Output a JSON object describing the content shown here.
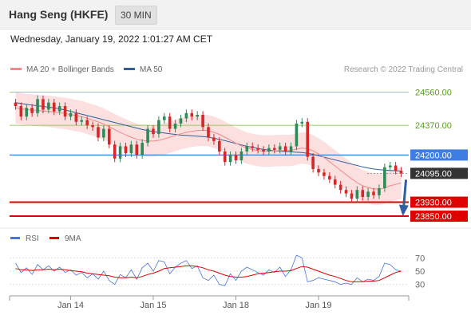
{
  "header": {
    "instrument": "Hang Seng (HKFE)",
    "timeframe": "30 MIN"
  },
  "datetime": "Wednesday, January 19, 2022 1:01:27 AM CET",
  "legend": {
    "items": [
      {
        "label": "MA 20 + Bollinger Bands",
        "color": "#f08a8a"
      },
      {
        "label": "MA 50",
        "color": "#2f5f9e"
      }
    ],
    "credit": "Research © 2022 Trading Central"
  },
  "colors": {
    "up": "#2e8b57",
    "down": "#d62728",
    "support": "#e00000",
    "resistance": "#7cbf3a",
    "pivot": "#3d7ee0",
    "band": "#fbd9d9",
    "arrow": "#2f5f9e"
  },
  "chart_data": {
    "type": "candlestick",
    "ylim": [
      23800,
      24640
    ],
    "levels": [
      {
        "value": 24560.0,
        "label": "24560.00",
        "kind": "resistance"
      },
      {
        "value": 24370.0,
        "label": "24370.00",
        "kind": "resistance"
      },
      {
        "value": 24200.0,
        "label": "24200.00",
        "kind": "pivot"
      },
      {
        "value": 24095.0,
        "label": "24095.00",
        "kind": "last"
      },
      {
        "value": 23930.0,
        "label": "23930.00",
        "kind": "support"
      },
      {
        "value": 23850.0,
        "label": "23850.00",
        "kind": "support"
      }
    ],
    "x_ticks": [
      {
        "label": "Jan 14",
        "index": 10
      },
      {
        "label": "Jan 15",
        "index": 25
      },
      {
        "label": "Jan 18",
        "index": 40
      },
      {
        "label": "Jan 19",
        "index": 55
      }
    ],
    "close": [
      24480,
      24420,
      24470,
      24440,
      24520,
      24460,
      24500,
      24450,
      24480,
      24420,
      24440,
      24390,
      24400,
      24370,
      24360,
      24300,
      24350,
      24260,
      24180,
      24250,
      24210,
      24260,
      24200,
      24270,
      24350,
      24320,
      24400,
      24420,
      24350,
      24380,
      24410,
      24440,
      24420,
      24430,
      24360,
      24300,
      24280,
      24220,
      24160,
      24200,
      24170,
      24220,
      24250,
      24240,
      24230,
      24220,
      24240,
      24230,
      24250,
      24220,
      24250,
      24380,
      24390,
      24190,
      24120,
      24100,
      24080,
      24060,
      24030,
      24000,
      23980,
      23950,
      24000,
      23960,
      23990,
      23970,
      24010,
      24130,
      24140,
      24110,
      24095
    ],
    "volatility": 60,
    "ma20": [
      24470,
      24465,
      24460,
      24458,
      24455,
      24452,
      24450,
      24446,
      24442,
      24438,
      24432,
      24426,
      24420,
      24410,
      24400,
      24390,
      24378,
      24362,
      24345,
      24330,
      24315,
      24302,
      24290,
      24284,
      24280,
      24280,
      24284,
      24292,
      24302,
      24312,
      24322,
      24330,
      24336,
      24340,
      24342,
      24340,
      24330,
      24318,
      24302,
      24285,
      24268,
      24252,
      24240,
      24232,
      24226,
      24222,
      24222,
      24224,
      24226,
      24226,
      24226,
      24234,
      24240,
      24236,
      24224,
      24206,
      24186,
      24162,
      24138,
      24112,
      24088,
      24064,
      24042,
      24024,
      24014,
      24006,
      24004,
      24012,
      24024,
      24032,
      24040
    ],
    "ma50": [
      24500,
      24495,
      24490,
      24486,
      24482,
      24478,
      24474,
      24470,
      24464,
      24458,
      24450,
      24442,
      24434,
      24426,
      24418,
      24410,
      24402,
      24394,
      24386,
      24378,
      24370,
      24362,
      24354,
      24346,
      24340,
      24334,
      24330,
      24326,
      24322,
      24318,
      24314,
      24312,
      24310,
      24308,
      24306,
      24302,
      24296,
      24290,
      24282,
      24274,
      24266,
      24258,
      24250,
      24244,
      24238,
      24232,
      24228,
      24224,
      24222,
      24220,
      24218,
      24216,
      24214,
      24210,
      24204,
      24196,
      24188,
      24180,
      24172,
      24164,
      24156,
      24148,
      24140,
      24132,
      24126,
      24120,
      24116,
      24114,
      24112,
      24110,
      24108
    ],
    "bb_width": 90,
    "forecast": {
      "from": 24095,
      "to": 23850
    },
    "rsi": {
      "labels": [
        {
          "label": "RSI",
          "color": "#4a74d6"
        },
        {
          "label": "9MA",
          "color": "#e00000"
        }
      ],
      "ticks": [
        70,
        50,
        30
      ],
      "ylim": [
        20,
        80
      ],
      "rsi": [
        62,
        48,
        55,
        45,
        60,
        52,
        58,
        50,
        56,
        48,
        52,
        44,
        48,
        40,
        46,
        38,
        50,
        36,
        30,
        45,
        40,
        52,
        38,
        55,
        62,
        50,
        66,
        64,
        46,
        56,
        62,
        66,
        54,
        58,
        40,
        36,
        44,
        30,
        28,
        46,
        36,
        50,
        56,
        52,
        48,
        44,
        52,
        48,
        56,
        42,
        52,
        74,
        70,
        34,
        36,
        40,
        38,
        36,
        34,
        30,
        32,
        30,
        40,
        34,
        38,
        36,
        42,
        62,
        60,
        52,
        50
      ],
      "ma9": [
        54,
        52,
        52,
        51,
        52,
        52,
        53,
        52,
        53,
        52,
        51,
        50,
        49,
        47,
        46,
        45,
        44,
        43,
        41,
        40,
        40,
        41,
        40,
        42,
        45,
        47,
        50,
        54,
        55,
        56,
        57,
        58,
        58,
        57,
        55,
        52,
        50,
        47,
        44,
        42,
        41,
        41,
        42,
        44,
        46,
        47,
        48,
        49,
        50,
        50,
        51,
        54,
        57,
        56,
        53,
        50,
        47,
        44,
        42,
        39,
        36,
        34,
        34,
        34,
        35,
        35,
        36,
        40,
        44,
        48,
        50
      ]
    }
  }
}
